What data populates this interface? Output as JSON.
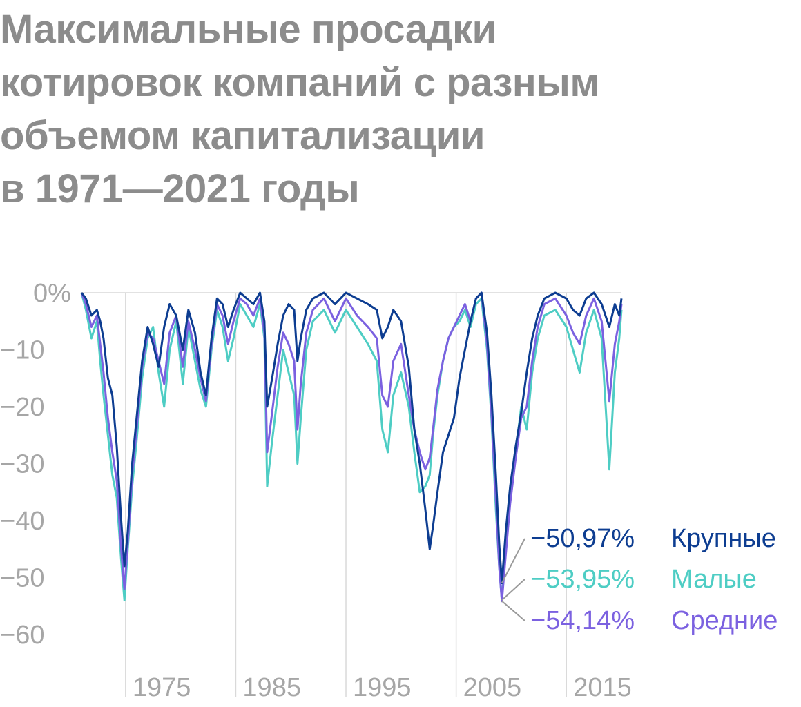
{
  "title_lines": [
    "Максимальные просадки",
    "котировок компаний с разным",
    "объемом капитализации",
    "в 1971—2021 годы"
  ],
  "colors": {
    "large": "#0d3d91",
    "small": "#4ecdc4",
    "mid": "#7b61e0",
    "axis_text": "#a6a6a6",
    "grid": "#d9d9d9",
    "callout": "#9a9a9a"
  },
  "chart_data": {
    "type": "line",
    "title": "Максимальные просадки котировок компаний с разным объемом капитализации в 1971—2021 годы",
    "xlabel": "",
    "ylabel": "",
    "xlim": [
      1971,
      2020
    ],
    "ylim": [
      -65,
      0
    ],
    "y_ticks": [
      0,
      -10,
      -20,
      -30,
      -40,
      -50,
      -60
    ],
    "y_tick_labels": [
      "0%",
      "−10",
      "−20",
      "−30",
      "−40",
      "−50",
      "−60"
    ],
    "x_ticks": [
      1975,
      1985,
      1995,
      2005,
      2015
    ],
    "x_tick_labels": [
      "1975",
      "1985",
      "1995",
      "2005",
      "2015"
    ],
    "grid": "vertical",
    "legend_placement": "right, at series minima",
    "series": [
      {
        "key": "large",
        "name": "Крупные",
        "label": "−50,97%",
        "trough": -50.97,
        "points": [
          [
            1971.0,
            0
          ],
          [
            1971.4,
            -1
          ],
          [
            1971.9,
            -4
          ],
          [
            1972.4,
            -3
          ],
          [
            1972.7,
            -5
          ],
          [
            1973.0,
            -8
          ],
          [
            1973.4,
            -15
          ],
          [
            1973.8,
            -18
          ],
          [
            1974.2,
            -27
          ],
          [
            1974.6,
            -40
          ],
          [
            1974.9,
            -48
          ],
          [
            1975.2,
            -42
          ],
          [
            1975.6,
            -30
          ],
          [
            1976.0,
            -22
          ],
          [
            1976.5,
            -12
          ],
          [
            1977.0,
            -6
          ],
          [
            1977.5,
            -9
          ],
          [
            1978.0,
            -13
          ],
          [
            1978.5,
            -6
          ],
          [
            1979.0,
            -2
          ],
          [
            1979.6,
            -4
          ],
          [
            1980.2,
            -10
          ],
          [
            1980.7,
            -3
          ],
          [
            1981.3,
            -7
          ],
          [
            1981.8,
            -14
          ],
          [
            1982.3,
            -18
          ],
          [
            1982.8,
            -8
          ],
          [
            1983.3,
            -1
          ],
          [
            1983.8,
            -2
          ],
          [
            1984.3,
            -6
          ],
          [
            1984.8,
            -3
          ],
          [
            1985.4,
            0
          ],
          [
            1986.0,
            -1
          ],
          [
            1986.6,
            -2
          ],
          [
            1987.2,
            0
          ],
          [
            1987.6,
            -5
          ],
          [
            1987.85,
            -20
          ],
          [
            1988.3,
            -15
          ],
          [
            1988.8,
            -9
          ],
          [
            1989.3,
            -4
          ],
          [
            1989.8,
            -2
          ],
          [
            1990.3,
            -3
          ],
          [
            1990.6,
            -12
          ],
          [
            1990.9,
            -8
          ],
          [
            1991.4,
            -3
          ],
          [
            1992.0,
            -1
          ],
          [
            1993.0,
            0
          ],
          [
            1994.0,
            -2
          ],
          [
            1995.0,
            0
          ],
          [
            1996.0,
            -1
          ],
          [
            1997.0,
            -2
          ],
          [
            1997.8,
            -3
          ],
          [
            1998.3,
            -8
          ],
          [
            1998.8,
            -6
          ],
          [
            1999.3,
            -3
          ],
          [
            2000.0,
            -5
          ],
          [
            2000.7,
            -13
          ],
          [
            2001.2,
            -24
          ],
          [
            2001.7,
            -30
          ],
          [
            2002.2,
            -38
          ],
          [
            2002.6,
            -45
          ],
          [
            2002.9,
            -41
          ],
          [
            2003.3,
            -35
          ],
          [
            2003.8,
            -28
          ],
          [
            2004.3,
            -25
          ],
          [
            2004.8,
            -22
          ],
          [
            2005.3,
            -15
          ],
          [
            2005.8,
            -10
          ],
          [
            2006.3,
            -5
          ],
          [
            2006.8,
            -1
          ],
          [
            2007.3,
            0
          ],
          [
            2007.8,
            -7
          ],
          [
            2008.2,
            -18
          ],
          [
            2008.6,
            -32
          ],
          [
            2008.9,
            -44
          ],
          [
            2009.15,
            -50.97
          ],
          [
            2009.5,
            -42
          ],
          [
            2009.9,
            -34
          ],
          [
            2010.4,
            -27
          ],
          [
            2010.9,
            -21
          ],
          [
            2011.4,
            -14
          ],
          [
            2011.9,
            -8
          ],
          [
            2012.4,
            -4
          ],
          [
            2013.0,
            -1
          ],
          [
            2014.0,
            0
          ],
          [
            2015.0,
            -1
          ],
          [
            2015.6,
            -3
          ],
          [
            2016.2,
            -4
          ],
          [
            2016.8,
            -1
          ],
          [
            2017.5,
            0
          ],
          [
            2018.2,
            -2
          ],
          [
            2018.9,
            -6
          ],
          [
            2019.4,
            -2
          ],
          [
            2019.8,
            -4
          ],
          [
            2020.0,
            -1
          ]
        ]
      },
      {
        "key": "small",
        "name": "Малые",
        "label": "−53,95%",
        "trough": -53.95,
        "points": [
          [
            1971.0,
            0
          ],
          [
            1971.4,
            -3
          ],
          [
            1971.9,
            -8
          ],
          [
            1972.4,
            -5
          ],
          [
            1972.7,
            -12
          ],
          [
            1973.0,
            -18
          ],
          [
            1973.4,
            -25
          ],
          [
            1973.8,
            -32
          ],
          [
            1974.2,
            -36
          ],
          [
            1974.6,
            -47
          ],
          [
            1974.9,
            -54
          ],
          [
            1975.2,
            -45
          ],
          [
            1975.6,
            -34
          ],
          [
            1976.0,
            -26
          ],
          [
            1976.5,
            -15
          ],
          [
            1977.0,
            -8
          ],
          [
            1977.5,
            -6
          ],
          [
            1978.0,
            -14
          ],
          [
            1978.5,
            -20
          ],
          [
            1979.0,
            -10
          ],
          [
            1979.6,
            -5
          ],
          [
            1980.2,
            -16
          ],
          [
            1980.7,
            -6
          ],
          [
            1981.3,
            -12
          ],
          [
            1981.8,
            -17
          ],
          [
            1982.3,
            -20
          ],
          [
            1982.8,
            -10
          ],
          [
            1983.3,
            -3
          ],
          [
            1983.8,
            -6
          ],
          [
            1984.3,
            -12
          ],
          [
            1984.8,
            -8
          ],
          [
            1985.4,
            -2
          ],
          [
            1986.0,
            -4
          ],
          [
            1986.6,
            -6
          ],
          [
            1987.2,
            -2
          ],
          [
            1987.6,
            -8
          ],
          [
            1987.85,
            -34
          ],
          [
            1988.3,
            -26
          ],
          [
            1988.8,
            -18
          ],
          [
            1989.3,
            -10
          ],
          [
            1989.8,
            -14
          ],
          [
            1990.3,
            -18
          ],
          [
            1990.6,
            -30
          ],
          [
            1990.9,
            -22
          ],
          [
            1991.4,
            -10
          ],
          [
            1992.0,
            -5
          ],
          [
            1993.0,
            -3
          ],
          [
            1994.0,
            -7
          ],
          [
            1995.0,
            -3
          ],
          [
            1996.0,
            -6
          ],
          [
            1997.0,
            -9
          ],
          [
            1997.8,
            -12
          ],
          [
            1998.3,
            -24
          ],
          [
            1998.8,
            -28
          ],
          [
            1999.3,
            -18
          ],
          [
            2000.0,
            -14
          ],
          [
            2000.7,
            -20
          ],
          [
            2001.2,
            -28
          ],
          [
            2001.7,
            -35
          ],
          [
            2002.2,
            -34
          ],
          [
            2002.6,
            -32
          ],
          [
            2002.9,
            -25
          ],
          [
            2003.3,
            -18
          ],
          [
            2003.8,
            -12
          ],
          [
            2004.3,
            -8
          ],
          [
            2004.8,
            -6
          ],
          [
            2005.3,
            -5
          ],
          [
            2005.8,
            -3
          ],
          [
            2006.3,
            -6
          ],
          [
            2006.8,
            -2
          ],
          [
            2007.3,
            -1
          ],
          [
            2007.8,
            -10
          ],
          [
            2008.2,
            -22
          ],
          [
            2008.6,
            -38
          ],
          [
            2008.9,
            -48
          ],
          [
            2009.15,
            -53.95
          ],
          [
            2009.5,
            -45
          ],
          [
            2009.9,
            -36
          ],
          [
            2010.4,
            -28
          ],
          [
            2010.9,
            -20
          ],
          [
            2011.4,
            -24
          ],
          [
            2011.9,
            -14
          ],
          [
            2012.4,
            -8
          ],
          [
            2013.0,
            -4
          ],
          [
            2014.0,
            -3
          ],
          [
            2015.0,
            -6
          ],
          [
            2015.6,
            -10
          ],
          [
            2016.2,
            -14
          ],
          [
            2016.8,
            -7
          ],
          [
            2017.5,
            -3
          ],
          [
            2018.2,
            -8
          ],
          [
            2018.9,
            -31
          ],
          [
            2019.4,
            -14
          ],
          [
            2019.8,
            -8
          ],
          [
            2020.0,
            -3
          ]
        ]
      },
      {
        "key": "mid",
        "name": "Средние",
        "label": "−54,14%",
        "trough": -54.14,
        "points": [
          [
            1971.0,
            0
          ],
          [
            1971.4,
            -2
          ],
          [
            1971.9,
            -6
          ],
          [
            1972.4,
            -4
          ],
          [
            1972.7,
            -9
          ],
          [
            1973.0,
            -14
          ],
          [
            1973.4,
            -22
          ],
          [
            1973.8,
            -28
          ],
          [
            1974.2,
            -33
          ],
          [
            1974.6,
            -45
          ],
          [
            1974.9,
            -52
          ],
          [
            1975.2,
            -44
          ],
          [
            1975.6,
            -32
          ],
          [
            1976.0,
            -24
          ],
          [
            1976.5,
            -13
          ],
          [
            1977.0,
            -7
          ],
          [
            1977.5,
            -8
          ],
          [
            1978.0,
            -12
          ],
          [
            1978.5,
            -16
          ],
          [
            1979.0,
            -7
          ],
          [
            1979.6,
            -4
          ],
          [
            1980.2,
            -13
          ],
          [
            1980.7,
            -5
          ],
          [
            1981.3,
            -10
          ],
          [
            1981.8,
            -15
          ],
          [
            1982.3,
            -19
          ],
          [
            1982.8,
            -9
          ],
          [
            1983.3,
            -2
          ],
          [
            1983.8,
            -4
          ],
          [
            1984.3,
            -9
          ],
          [
            1984.8,
            -5
          ],
          [
            1985.4,
            -1
          ],
          [
            1986.0,
            -2
          ],
          [
            1986.6,
            -4
          ],
          [
            1987.2,
            -1
          ],
          [
            1987.6,
            -7
          ],
          [
            1987.85,
            -28
          ],
          [
            1988.3,
            -21
          ],
          [
            1988.8,
            -13
          ],
          [
            1989.3,
            -7
          ],
          [
            1989.8,
            -9
          ],
          [
            1990.3,
            -12
          ],
          [
            1990.6,
            -24
          ],
          [
            1990.9,
            -16
          ],
          [
            1991.4,
            -7
          ],
          [
            1992.0,
            -3
          ],
          [
            1993.0,
            -1
          ],
          [
            1994.0,
            -5
          ],
          [
            1995.0,
            -1
          ],
          [
            1996.0,
            -4
          ],
          [
            1997.0,
            -6
          ],
          [
            1997.8,
            -8
          ],
          [
            1998.3,
            -18
          ],
          [
            1998.8,
            -20
          ],
          [
            1999.3,
            -12
          ],
          [
            2000.0,
            -9
          ],
          [
            2000.7,
            -18
          ],
          [
            2001.2,
            -24
          ],
          [
            2001.7,
            -28
          ],
          [
            2002.2,
            -31
          ],
          [
            2002.6,
            -29
          ],
          [
            2002.9,
            -24
          ],
          [
            2003.3,
            -17
          ],
          [
            2003.8,
            -12
          ],
          [
            2004.3,
            -8
          ],
          [
            2004.8,
            -6
          ],
          [
            2005.3,
            -4
          ],
          [
            2005.8,
            -2
          ],
          [
            2006.3,
            -5
          ],
          [
            2006.8,
            -1
          ],
          [
            2007.3,
            0
          ],
          [
            2007.8,
            -9
          ],
          [
            2008.2,
            -21
          ],
          [
            2008.6,
            -36
          ],
          [
            2008.9,
            -48
          ],
          [
            2009.15,
            -54.14
          ],
          [
            2009.5,
            -46
          ],
          [
            2009.9,
            -37
          ],
          [
            2010.4,
            -29
          ],
          [
            2010.9,
            -22
          ],
          [
            2011.4,
            -20
          ],
          [
            2011.9,
            -12
          ],
          [
            2012.4,
            -6
          ],
          [
            2013.0,
            -2
          ],
          [
            2014.0,
            -1
          ],
          [
            2015.0,
            -4
          ],
          [
            2015.6,
            -7
          ],
          [
            2016.2,
            -9
          ],
          [
            2016.8,
            -4
          ],
          [
            2017.5,
            -1
          ],
          [
            2018.2,
            -5
          ],
          [
            2018.9,
            -19
          ],
          [
            2019.4,
            -9
          ],
          [
            2019.8,
            -5
          ],
          [
            2020.0,
            -2
          ]
        ]
      }
    ],
    "draw_order": [
      "small",
      "mid",
      "large"
    ],
    "legend_order": [
      "large",
      "small",
      "mid"
    ],
    "callout_x": 2009.15
  }
}
